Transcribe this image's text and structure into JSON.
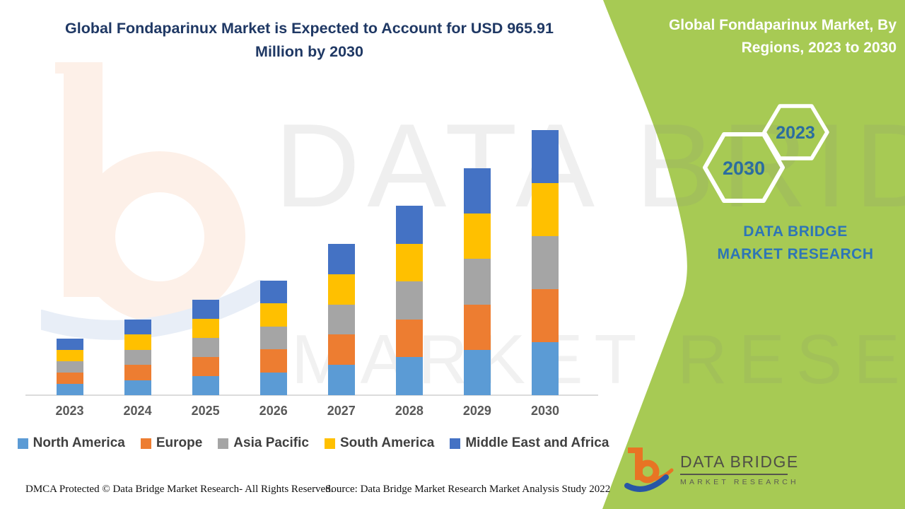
{
  "header": {
    "title": "Global Fondaparinux Market is Expected to Account for USD 965.91 Million by 2030"
  },
  "side_panel": {
    "title": "Global Fondaparinux Market, By Regions, 2023 to 2030",
    "hexagon_back_year": "2030",
    "hexagon_front_year": "2023",
    "brand_text": "DATA BRIDGE MARKET RESEARCH"
  },
  "watermark": {
    "line1": "DATA BRIDGE",
    "line2": "MARKET RESEARCH"
  },
  "logo": {
    "primary": "DATA BRIDGE",
    "secondary": "MARKET RESEARCH"
  },
  "footer": {
    "dmca": "DMCA Protected © Data Bridge Market Research- All Rights Reserved.",
    "source": "Source: Data Bridge Market Research Market Analysis Study 2022"
  },
  "chart_data": {
    "type": "bar",
    "stacked": true,
    "title": "Global Fondaparinux Market is Expected to Account for USD 965.91 Million by 2030",
    "xlabel": "",
    "ylabel": "",
    "unit": "USD Million",
    "categories": [
      "2023",
      "2024",
      "2025",
      "2026",
      "2027",
      "2028",
      "2029",
      "2030"
    ],
    "series": [
      {
        "name": "North America",
        "color": "#5B9BD5",
        "values": [
          41.21,
          55.12,
          69.55,
          83.45,
          110.24,
          138.06,
          165.36,
          193.18
        ]
      },
      {
        "name": "Europe",
        "color": "#ED7D31",
        "values": [
          41.21,
          55.12,
          69.55,
          83.45,
          110.24,
          138.06,
          165.36,
          193.18
        ]
      },
      {
        "name": "Asia Pacific",
        "color": "#A5A5A5",
        "values": [
          41.21,
          55.12,
          69.55,
          83.45,
          110.24,
          138.06,
          165.36,
          193.18
        ]
      },
      {
        "name": "South America",
        "color": "#FFC000",
        "values": [
          41.21,
          55.12,
          69.55,
          83.45,
          110.24,
          138.06,
          165.36,
          193.18
        ]
      },
      {
        "name": "Middle East and Africa",
        "color": "#4472C4",
        "values": [
          41.21,
          55.12,
          69.55,
          83.45,
          110.24,
          138.06,
          165.36,
          193.18
        ]
      }
    ],
    "totals": [
      206.06,
      275.61,
      347.73,
      417.27,
      551.21,
      690.3,
      826.82,
      965.91
    ],
    "ylim": [
      0,
      1000
    ],
    "gridlines": false,
    "legend_position": "bottom",
    "note": "Region split estimated from bar segment heights; yearly totals anchored to USD 965.91 Million in 2030 stated in title."
  },
  "colors": {
    "panel_green": "#A7CA54",
    "title_navy": "#1F3864",
    "panel_title_white": "#FFFFFF",
    "brand_blue": "#2E75B6",
    "hexagon_year_blue": "#2B6D9F",
    "axis_label_gray": "#595959",
    "legend_label_gray": "#404040",
    "axis_line_gray": "#DCDCDC",
    "logo_orange": "#E87424",
    "logo_blue": "#2856A6",
    "watermark_peach": "#FDF0E8"
  }
}
